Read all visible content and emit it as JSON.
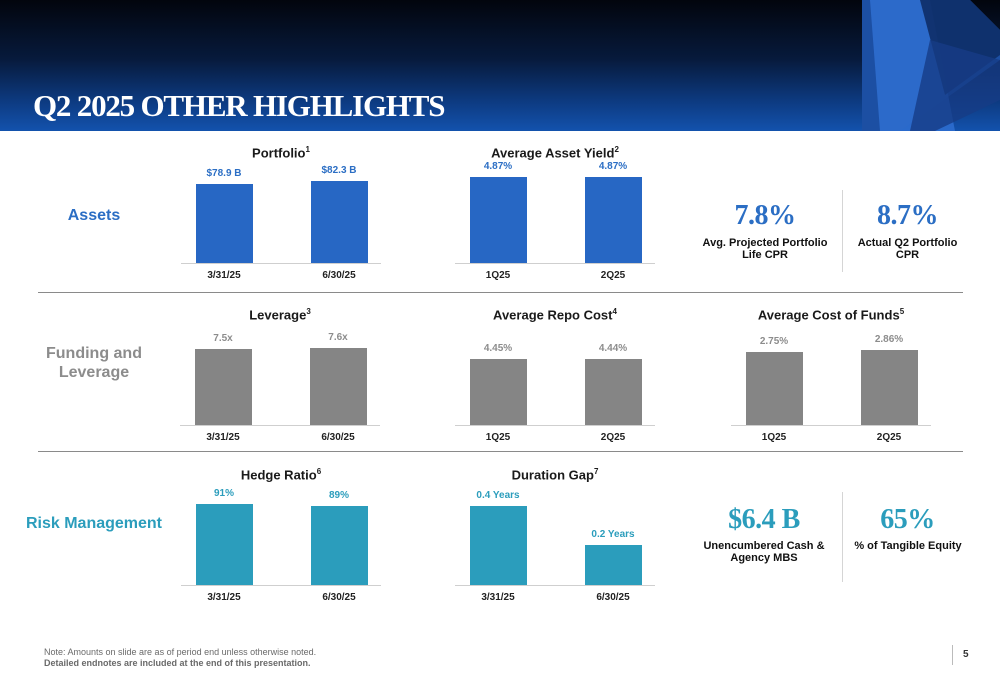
{
  "page_title": "Q2 2025 OTHER HIGHLIGHTS",
  "row_labels": {
    "assets": "Assets",
    "funding": "Funding and Leverage",
    "risk": "Risk Management"
  },
  "colors": {
    "blue": "#2767c4",
    "gray": "#858585",
    "teal": "#2b9dbc",
    "blue_text": "#2b6ec4",
    "gray_text": "#8c8c8c",
    "teal_text": "#2b9dbc"
  },
  "kpis": {
    "cpr_projected": {
      "value": "7.8%",
      "label": "Avg. Projected Portfolio Life CPR"
    },
    "cpr_actual": {
      "value": "8.7%",
      "label": "Actual Q2 Portfolio CPR"
    },
    "unencumbered": {
      "value": "$6.4 B",
      "label": "Unencumbered Cash & Agency MBS"
    },
    "tangible_equity": {
      "value": "65%",
      "label": "% of Tangible Equity"
    }
  },
  "chart_data": [
    {
      "id": "portfolio",
      "type": "bar",
      "title": "Portfolio",
      "note": "1",
      "categories": [
        "3/31/25",
        "6/30/25"
      ],
      "values": [
        78.9,
        82.3
      ],
      "labels": [
        "$78.9 B",
        "$82.3 B"
      ],
      "ylim": [
        0,
        95
      ],
      "color": "blue"
    },
    {
      "id": "asset-yield",
      "type": "bar",
      "title": "Average Asset Yield",
      "note": "2",
      "categories": [
        "1Q25",
        "2Q25"
      ],
      "values": [
        4.87,
        4.87
      ],
      "labels": [
        "4.87%",
        "4.87%"
      ],
      "ylim": [
        0,
        5.4
      ],
      "color": "blue"
    },
    {
      "id": "leverage",
      "type": "bar",
      "title": "Leverage",
      "note": "3",
      "categories": [
        "3/31/25",
        "6/30/25"
      ],
      "values": [
        7.5,
        7.6
      ],
      "labels": [
        "7.5x",
        "7.6x"
      ],
      "ylim": [
        0,
        9.4
      ],
      "color": "gray"
    },
    {
      "id": "repo-cost",
      "type": "bar",
      "title": "Average Repo Cost",
      "note": "4",
      "categories": [
        "1Q25",
        "2Q25"
      ],
      "values": [
        4.45,
        4.44
      ],
      "labels": [
        "4.45%",
        "4.44%"
      ],
      "ylim": [
        0,
        6.4
      ],
      "color": "gray"
    },
    {
      "id": "cost-of-funds",
      "type": "bar",
      "title": "Average Cost of Funds",
      "note": "5",
      "categories": [
        "1Q25",
        "2Q25"
      ],
      "values": [
        2.75,
        2.86
      ],
      "labels": [
        "2.75%",
        "2.86%"
      ],
      "ylim": [
        0,
        3.6
      ],
      "color": "gray"
    },
    {
      "id": "hedge-ratio",
      "type": "bar",
      "title": "Hedge Ratio",
      "note": "6",
      "categories": [
        "3/31/25",
        "6/30/25"
      ],
      "values": [
        91,
        89
      ],
      "labels": [
        "91%",
        "89%"
      ],
      "ylim": [
        0,
        107
      ],
      "color": "teal"
    },
    {
      "id": "duration-gap",
      "type": "bar",
      "title": "Duration Gap",
      "note": "7",
      "categories": [
        "3/31/25",
        "6/30/25"
      ],
      "values": [
        0.4,
        0.2
      ],
      "labels": [
        "0.4 Years",
        "0.2 Years"
      ],
      "ylim": [
        0,
        0.48
      ],
      "color": "teal"
    }
  ],
  "footnote": {
    "line1": "Note: Amounts on slide are as of period end unless otherwise noted.",
    "line2": "Detailed endnotes are included at the end of this presentation."
  },
  "page_number": "5"
}
